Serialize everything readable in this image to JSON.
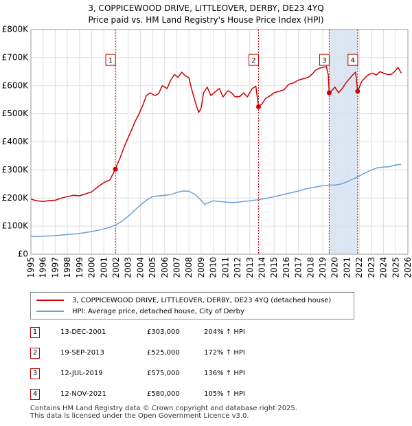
{
  "title": {
    "line1": "3, COPPICEWOOD DRIVE, LITTLEOVER, DERBY, DE23 4YQ",
    "line2": "Price paid vs. HM Land Registry's House Price Index (HPI)"
  },
  "colors": {
    "property": "#cc0000",
    "hpi": "#6a9fd4",
    "shade": "#dce6f2",
    "grid": "#dddddd",
    "marker_border": "#c00000"
  },
  "chart_data": {
    "type": "line",
    "title": "Price paid vs. HM Land Registry's House Price Index (HPI)",
    "xlim": [
      1995,
      2026
    ],
    "ylim": [
      0,
      800000
    ],
    "y_ticks": [
      0,
      100000,
      200000,
      300000,
      400000,
      500000,
      600000,
      700000,
      800000
    ],
    "y_tick_labels": [
      "£0",
      "£100K",
      "£200K",
      "£300K",
      "£400K",
      "£500K",
      "£600K",
      "£700K",
      "£800K"
    ],
    "x_ticks": [
      1995,
      1996,
      1997,
      1998,
      1999,
      2000,
      2001,
      2002,
      2003,
      2004,
      2005,
      2006,
      2007,
      2008,
      2009,
      2010,
      2011,
      2012,
      2013,
      2014,
      2015,
      2016,
      2017,
      2018,
      2019,
      2020,
      2021,
      2022,
      2023,
      2024,
      2025,
      2026
    ],
    "x_tick_labels": [
      "1995",
      "1996",
      "1997",
      "1998",
      "1999",
      "2000",
      "2001",
      "2002",
      "2003",
      "2004",
      "2005",
      "2006",
      "2007",
      "2008",
      "2009",
      "2010",
      "2011",
      "2012",
      "2013",
      "2014",
      "2015",
      "2016",
      "2017",
      "2018",
      "2019",
      "2020",
      "2021",
      "2022",
      "2023",
      "2024",
      "2025",
      "2026"
    ],
    "grid": true,
    "shaded_spans": [
      [
        2019.53,
        2021.87
      ]
    ],
    "series": [
      {
        "name": "3, COPPICEWOOD DRIVE, LITTLEOVER, DERBY, DE23 4YQ (detached house)",
        "x": [
          1995.0,
          1995.5,
          1996.0,
          1996.5,
          1997.0,
          1997.5,
          1998.0,
          1998.5,
          1999.0,
          1999.5,
          2000.0,
          2000.5,
          2001.0,
          2001.5,
          2001.95,
          2002.3,
          2002.7,
          2003.0,
          2003.3,
          2003.6,
          2003.9,
          2004.2,
          2004.5,
          2004.8,
          2005.2,
          2005.5,
          2005.8,
          2006.2,
          2006.5,
          2006.8,
          2007.1,
          2007.4,
          2007.7,
          2008.0,
          2008.2,
          2008.4,
          2008.6,
          2008.8,
          2009.0,
          2009.2,
          2009.5,
          2009.8,
          2010.2,
          2010.5,
          2010.8,
          2011.2,
          2011.5,
          2011.8,
          2012.2,
          2012.5,
          2012.8,
          2013.2,
          2013.5,
          2013.72,
          2014.0,
          2014.3,
          2014.7,
          2015.0,
          2015.4,
          2015.8,
          2016.2,
          2016.6,
          2017.0,
          2017.4,
          2017.8,
          2018.1,
          2018.4,
          2018.7,
          2019.0,
          2019.3,
          2019.45,
          2019.53,
          2019.8,
          2020.0,
          2020.3,
          2020.6,
          2020.9,
          2021.2,
          2021.5,
          2021.7,
          2021.87,
          2022.2,
          2022.5,
          2022.8,
          2023.1,
          2023.4,
          2023.7,
          2024.0,
          2024.3,
          2024.6,
          2024.9,
          2025.2,
          2025.45
        ],
        "y": [
          196000,
          190000,
          188000,
          191000,
          192000,
          200000,
          205000,
          210000,
          208000,
          215000,
          222000,
          240000,
          255000,
          265000,
          303000,
          340000,
          385000,
          415000,
          445000,
          475000,
          500000,
          530000,
          565000,
          575000,
          565000,
          572000,
          600000,
          590000,
          620000,
          640000,
          630000,
          648000,
          635000,
          628000,
          590000,
          560000,
          530000,
          505000,
          520000,
          575000,
          595000,
          565000,
          580000,
          590000,
          560000,
          582000,
          575000,
          560000,
          562000,
          575000,
          560000,
          590000,
          598000,
          525000,
          535000,
          555000,
          565000,
          575000,
          580000,
          585000,
          605000,
          610000,
          620000,
          625000,
          630000,
          640000,
          655000,
          662000,
          665000,
          668000,
          640000,
          575000,
          585000,
          595000,
          575000,
          590000,
          610000,
          625000,
          640000,
          648000,
          580000,
          615000,
          630000,
          640000,
          645000,
          638000,
          650000,
          645000,
          640000,
          640000,
          650000,
          665000,
          645000
        ]
      },
      {
        "name": "HPI: Average price, detached house, City of Derby",
        "x": [
          1995.0,
          1995.5,
          1996.0,
          1996.5,
          1997.0,
          1997.5,
          1998.0,
          1998.5,
          1999.0,
          1999.5,
          2000.0,
          2000.5,
          2001.0,
          2001.5,
          2002.0,
          2002.5,
          2003.0,
          2003.5,
          2004.0,
          2004.5,
          2005.0,
          2005.5,
          2006.0,
          2006.5,
          2007.0,
          2007.5,
          2008.0,
          2008.5,
          2009.0,
          2009.3,
          2009.6,
          2010.0,
          2010.5,
          2011.0,
          2011.5,
          2012.0,
          2012.5,
          2013.0,
          2013.5,
          2014.0,
          2014.5,
          2015.0,
          2015.5,
          2016.0,
          2016.5,
          2017.0,
          2017.5,
          2018.0,
          2018.5,
          2019.0,
          2019.5,
          2020.0,
          2020.5,
          2021.0,
          2021.5,
          2022.0,
          2022.5,
          2023.0,
          2023.5,
          2024.0,
          2024.5,
          2025.0,
          2025.45
        ],
        "y": [
          64000,
          63000,
          64000,
          65000,
          66000,
          68000,
          70000,
          72000,
          74000,
          77000,
          81000,
          85000,
          90000,
          96000,
          105000,
          118000,
          135000,
          155000,
          175000,
          192000,
          205000,
          208000,
          210000,
          212000,
          220000,
          225000,
          224000,
          212000,
          192000,
          177000,
          184000,
          190000,
          188000,
          186000,
          184000,
          185000,
          188000,
          190000,
          193000,
          196000,
          200000,
          205000,
          210000,
          215000,
          220000,
          225000,
          232000,
          236000,
          240000,
          244000,
          246000,
          246000,
          250000,
          258000,
          268000,
          278000,
          290000,
          300000,
          308000,
          310000,
          312000,
          318000,
          320000
        ]
      }
    ],
    "sales": [
      {
        "num": "1",
        "x": 2001.95,
        "y": 303000
      },
      {
        "num": "2",
        "x": 2013.72,
        "y": 525000
      },
      {
        "num": "3",
        "x": 2019.53,
        "y": 575000
      },
      {
        "num": "4",
        "x": 2021.87,
        "y": 580000
      }
    ],
    "marker_label_y": 692000
  },
  "legend": {
    "property_label": "3, COPPICEWOOD DRIVE, LITTLEOVER, DERBY, DE23 4YQ (detached house)",
    "hpi_label": "HPI: Average price, detached house, City of Derby"
  },
  "table": [
    {
      "num": "1",
      "date": "13-DEC-2001",
      "price": "£303,000",
      "hpi": "204% ↑ HPI"
    },
    {
      "num": "2",
      "date": "19-SEP-2013",
      "price": "£525,000",
      "hpi": "172% ↑ HPI"
    },
    {
      "num": "3",
      "date": "12-JUL-2019",
      "price": "£575,000",
      "hpi": "136% ↑ HPI"
    },
    {
      "num": "4",
      "date": "12-NOV-2021",
      "price": "£580,000",
      "hpi": "105% ↑ HPI"
    }
  ],
  "footer": {
    "line1": "Contains HM Land Registry data © Crown copyright and database right 2025.",
    "line2": "This data is licensed under the Open Government Licence v3.0."
  }
}
